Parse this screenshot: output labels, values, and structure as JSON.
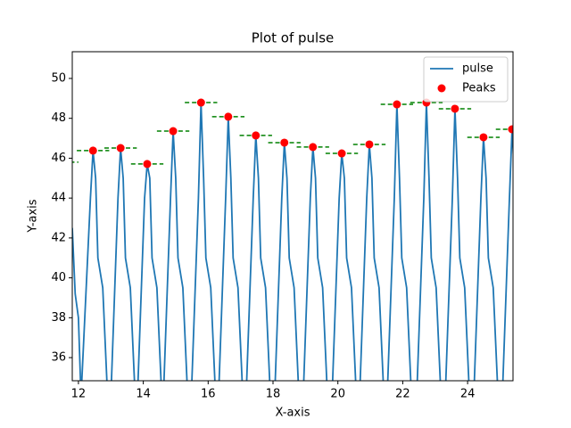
{
  "chart_data": {
    "type": "line",
    "title": "Plot of pulse",
    "x_label": "X-axis",
    "y_label": "Y-axis",
    "xlim": [
      11.81,
      25.4
    ],
    "ylim": [
      34.84,
      51.34
    ],
    "xticks": [
      12,
      14,
      16,
      18,
      20,
      22,
      24
    ],
    "yticks": [
      36,
      38,
      40,
      42,
      44,
      46,
      48,
      50
    ],
    "legend": "upper right",
    "series": [
      {
        "name": "pulse",
        "kind": "line",
        "color": "#1f77b4",
        "x": [
          11.81,
          11.9,
          12.0,
          12.08,
          12.37,
          12.45,
          12.53,
          12.6,
          12.75,
          12.9,
          13.0,
          13.22,
          13.3,
          13.38,
          13.45,
          13.6,
          13.75,
          13.82,
          14.04,
          14.12,
          14.2,
          14.27,
          14.42,
          14.57,
          14.62,
          14.84,
          14.92,
          15.0,
          15.07,
          15.22,
          15.37,
          15.48,
          15.7,
          15.78,
          15.86,
          15.93,
          16.08,
          16.23,
          16.32,
          16.54,
          16.62,
          16.7,
          16.77,
          16.92,
          17.07,
          17.17,
          17.39,
          17.47,
          17.55,
          17.62,
          17.77,
          17.92,
          18.05,
          18.27,
          18.35,
          18.43,
          18.5,
          18.65,
          18.8,
          18.93,
          19.15,
          19.23,
          19.31,
          19.38,
          19.53,
          19.68,
          19.82,
          20.04,
          20.12,
          20.2,
          20.27,
          20.42,
          20.57,
          20.67,
          20.89,
          20.97,
          21.05,
          21.12,
          21.27,
          21.42,
          21.52,
          21.74,
          21.82,
          21.9,
          21.97,
          22.12,
          22.27,
          22.43,
          22.65,
          22.73,
          22.81,
          22.88,
          23.03,
          23.18,
          23.31,
          23.53,
          23.61,
          23.69,
          23.76,
          23.91,
          24.06,
          24.19,
          24.41,
          24.49,
          24.57,
          24.64,
          24.79,
          24.94,
          25.07,
          25.29,
          25.37,
          25.45
        ],
        "values": [
          42.5,
          39.2,
          38,
          34,
          44,
          46.38,
          45,
          41,
          39.5,
          34,
          34,
          44,
          46.51,
          45,
          41,
          39.5,
          34,
          34,
          44,
          45.71,
          45,
          41,
          39.5,
          34,
          34,
          44,
          47.36,
          45,
          41,
          39.5,
          34,
          34,
          44,
          48.79,
          45,
          41,
          39.5,
          34,
          34,
          44,
          48.08,
          45,
          41,
          39.5,
          34,
          34,
          44,
          47.14,
          45,
          41,
          39.5,
          34,
          34,
          44,
          46.78,
          45,
          41,
          39.5,
          34,
          34,
          44,
          46.56,
          45,
          41,
          39.5,
          34,
          34,
          44,
          46.24,
          45,
          41,
          39.5,
          34,
          34,
          44,
          46.69,
          45,
          41,
          39.5,
          34,
          34,
          44,
          48.7,
          45,
          41,
          39.5,
          34,
          34,
          44,
          48.79,
          45,
          41,
          39.5,
          34,
          34,
          44,
          48.48,
          45,
          41,
          39.5,
          34,
          34,
          44,
          47.05,
          45,
          41,
          39.5,
          34,
          34,
          44,
          47.45,
          45
        ]
      },
      {
        "name": "Peaks",
        "kind": "scatter",
        "color": "#ff0000",
        "x": [
          12.45,
          13.3,
          14.12,
          14.92,
          15.78,
          16.62,
          17.47,
          18.35,
          19.23,
          20.12,
          20.97,
          21.82,
          22.73,
          23.61,
          24.49,
          25.37
        ],
        "values": [
          46.38,
          46.51,
          45.71,
          47.36,
          48.79,
          48.08,
          47.14,
          46.78,
          46.56,
          46.24,
          46.69,
          48.7,
          48.79,
          48.48,
          47.05,
          47.45
        ]
      }
    ],
    "hlines": {
      "color": "#008000",
      "y": [
        45.8,
        46.38,
        46.51,
        45.71,
        47.36,
        48.79,
        48.08,
        47.14,
        46.78,
        46.56,
        46.24,
        46.69,
        48.7,
        48.79,
        48.48,
        47.05,
        47.45
      ],
      "xmin": [
        11.3,
        11.95,
        12.8,
        13.62,
        14.42,
        15.28,
        16.12,
        16.97,
        17.85,
        18.73,
        19.62,
        20.47,
        21.32,
        22.23,
        23.11,
        23.99,
        24.87
      ],
      "xmax": [
        12.0,
        12.95,
        13.8,
        14.62,
        15.42,
        16.28,
        17.12,
        17.97,
        18.85,
        19.73,
        20.62,
        21.47,
        22.32,
        23.23,
        24.11,
        24.99,
        25.87
      ]
    }
  }
}
